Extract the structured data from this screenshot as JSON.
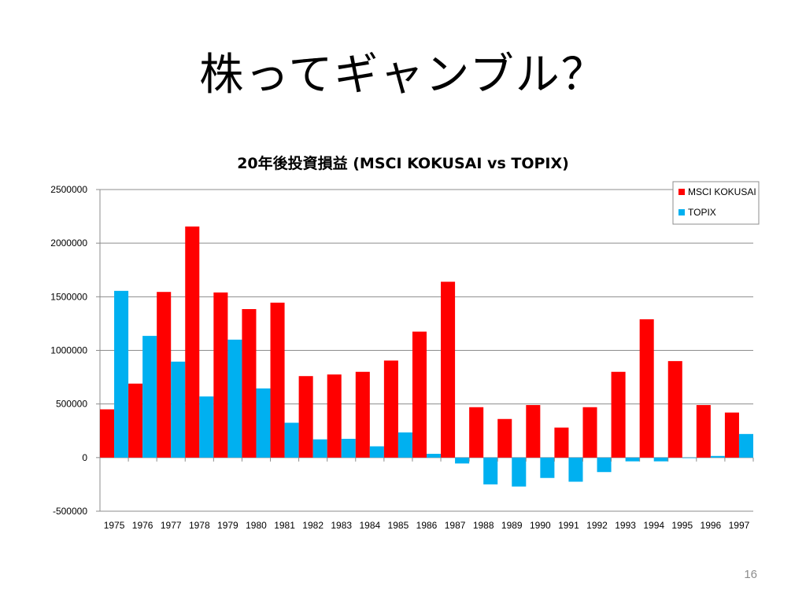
{
  "slide": {
    "title": "株ってギャンブル？",
    "page_number": "16"
  },
  "colors": {
    "msci": "#ff0000",
    "topix": "#00b0f0",
    "grid": "#8c8c8c"
  },
  "chart_data": {
    "type": "bar",
    "title": "20年後投資損益 (MSCI KOKUSAI vs TOPIX)",
    "xlabel": "",
    "ylabel": "",
    "ylim": [
      -500000,
      2500000
    ],
    "yticks": [
      -500000,
      0,
      500000,
      1000000,
      1500000,
      2000000,
      2500000
    ],
    "grid": true,
    "legend_position": "top-right",
    "categories": [
      "1975",
      "1976",
      "1977",
      "1978",
      "1979",
      "1980",
      "1981",
      "1982",
      "1983",
      "1984",
      "1985",
      "1986",
      "1987",
      "1988",
      "1989",
      "1990",
      "1991",
      "1992",
      "1993",
      "1994",
      "1995",
      "1996",
      "1997"
    ],
    "series": [
      {
        "name": "MSCI KOKUSAI",
        "color": "#ff0000",
        "values": [
          450000,
          690000,
          1545000,
          2155000,
          1540000,
          1385000,
          1445000,
          760000,
          775000,
          800000,
          905000,
          1175000,
          1640000,
          470000,
          360000,
          490000,
          280000,
          470000,
          800000,
          1290000,
          900000,
          490000,
          420000
        ]
      },
      {
        "name": "TOPIX",
        "color": "#00b0f0",
        "values": [
          1555000,
          1135000,
          895000,
          570000,
          1100000,
          645000,
          325000,
          170000,
          175000,
          105000,
          235000,
          35000,
          -55000,
          -250000,
          -270000,
          -190000,
          -225000,
          -135000,
          -35000,
          -35000,
          -5000,
          15000,
          220000
        ]
      }
    ]
  }
}
